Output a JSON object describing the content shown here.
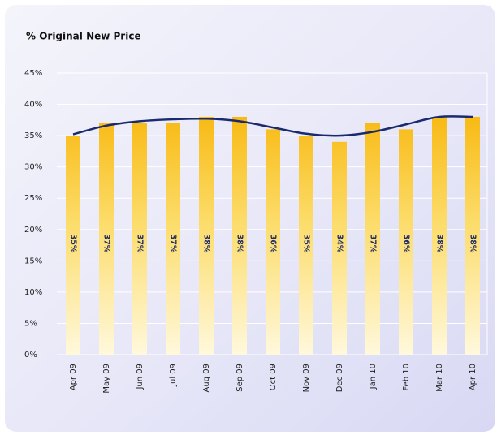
{
  "chart_data": {
    "type": "bar",
    "title": "% Original New Price",
    "categories": [
      "Apr 09",
      "May 09",
      "Jun 09",
      "Jul 09",
      "Aug 09",
      "Sep 09",
      "Oct 09",
      "Nov 09",
      "Dec 09",
      "Jan 10",
      "Feb 10",
      "Mar 10",
      "Apr 10"
    ],
    "series": [
      {
        "type": "bar",
        "color": "#f8b912",
        "values": [
          35,
          37,
          37,
          37,
          38,
          38,
          36,
          35,
          34,
          37,
          36,
          38,
          38
        ],
        "value_labels": [
          "35%",
          "37%",
          "37%",
          "37%",
          "38%",
          "38%",
          "36%",
          "35%",
          "34%",
          "37%",
          "36%",
          "38%",
          "38%"
        ]
      },
      {
        "type": "line",
        "color": "#1a2a6e",
        "values": [
          35.2,
          36.6,
          37.3,
          37.6,
          37.7,
          37.3,
          36.3,
          35.3,
          35,
          35.6,
          36.8,
          38,
          38
        ]
      }
    ],
    "ylim": [
      0,
      45
    ],
    "yticks": [
      {
        "value": 0,
        "label": "0%"
      },
      {
        "value": 5,
        "label": "5%"
      },
      {
        "value": 10,
        "label": "10%"
      },
      {
        "value": 15,
        "label": "15%"
      },
      {
        "value": 20,
        "label": "20%"
      },
      {
        "value": 25,
        "label": "25%"
      },
      {
        "value": 30,
        "label": "30%"
      },
      {
        "value": 35,
        "label": "35%"
      },
      {
        "value": 40,
        "label": "40%"
      },
      {
        "value": 45,
        "label": "45%"
      }
    ],
    "grid": true
  }
}
